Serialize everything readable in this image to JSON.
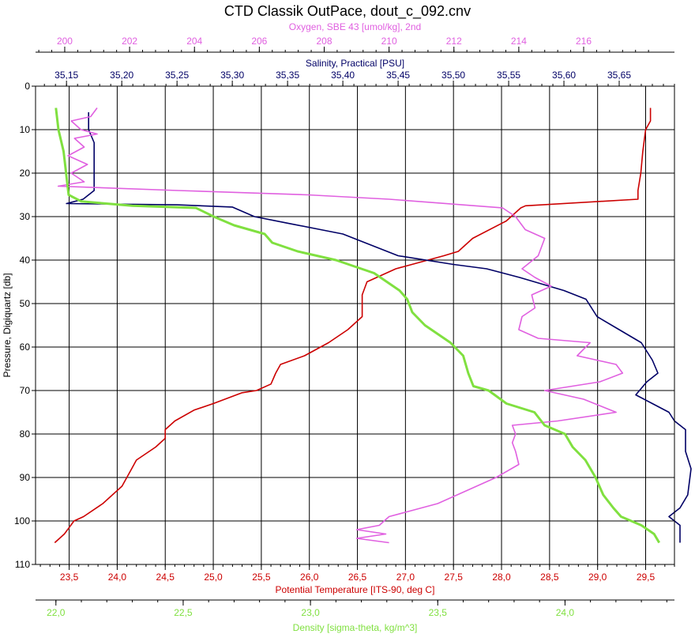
{
  "chart_data": {
    "type": "line",
    "title": "CTD Classik OutPace, dout_c_092.cnv",
    "grid": true,
    "y_axis": {
      "label": "Pressure, Digiquartz [db]",
      "range": [
        0,
        110
      ],
      "inverted": true,
      "ticks": [
        0,
        10,
        20,
        30,
        40,
        50,
        60,
        70,
        80,
        90,
        100,
        110
      ],
      "tick_labels": [
        "0",
        "10",
        "20",
        "30",
        "40",
        "50",
        "60",
        "70",
        "80",
        "90",
        "100",
        "110"
      ]
    },
    "x_axes": [
      {
        "id": "oxygen",
        "label": "Oxygen, SBE 43 [umol/kg], 2nd",
        "position": "top-outer",
        "color": "#e060e0",
        "range": [
          199.1,
          218.8
        ],
        "ticks": [
          200,
          202,
          204,
          206,
          208,
          210,
          212,
          214,
          216
        ],
        "tick_labels": [
          "200",
          "202",
          "204",
          "206",
          "208",
          "210",
          "212",
          "214",
          "216"
        ]
      },
      {
        "id": "salinity",
        "label": "Salinity, Practical [PSU]",
        "position": "top-inner",
        "color": "#000066",
        "range": [
          35.122,
          35.7
        ],
        "ticks": [
          35.15,
          35.2,
          35.25,
          35.3,
          35.35,
          35.4,
          35.45,
          35.5,
          35.55,
          35.6,
          35.65
        ],
        "tick_labels": [
          "35,15",
          "35,20",
          "35,25",
          "35,30",
          "35,35",
          "35,40",
          "35,45",
          "35,50",
          "35,55",
          "35,60",
          "35,65"
        ]
      },
      {
        "id": "temperature",
        "label": "Potential Temperature [ITS-90, deg C]",
        "position": "bottom-inner",
        "color": "#cc0000",
        "range": [
          23.15,
          29.8
        ],
        "ticks": [
          23.5,
          24.0,
          24.5,
          25.0,
          25.5,
          26.0,
          26.5,
          27.0,
          27.5,
          28.0,
          28.5,
          29.0,
          29.5
        ],
        "tick_labels": [
          "23,5",
          "24,0",
          "24,5",
          "25,0",
          "25,5",
          "26,0",
          "26,5",
          "27,0",
          "27,5",
          "28,0",
          "28,5",
          "29,0",
          "29,5"
        ]
      },
      {
        "id": "density",
        "label": "Density [sigma-theta, kg/m^3]",
        "position": "bottom-outer",
        "color": "#80e040",
        "range": [
          21.92,
          24.43
        ],
        "ticks": [
          22.0,
          22.5,
          23.0,
          23.5,
          24.0
        ],
        "tick_labels": [
          "22,0",
          "22,5",
          "23,0",
          "23,5",
          "24,0"
        ]
      }
    ],
    "series": [
      {
        "axis": "temperature",
        "color": "#cc0000",
        "points": [
          [
            29.55,
            5
          ],
          [
            29.55,
            8
          ],
          [
            29.5,
            10
          ],
          [
            29.47,
            15
          ],
          [
            29.45,
            20
          ],
          [
            29.42,
            24
          ],
          [
            29.42,
            26
          ],
          [
            28.25,
            27.5
          ],
          [
            28.2,
            28
          ],
          [
            28.05,
            31
          ],
          [
            27.7,
            35
          ],
          [
            27.55,
            38
          ],
          [
            27.4,
            39
          ],
          [
            26.9,
            42
          ],
          [
            26.6,
            45
          ],
          [
            26.55,
            48
          ],
          [
            26.55,
            53
          ],
          [
            26.4,
            56
          ],
          [
            26.2,
            59
          ],
          [
            25.95,
            62
          ],
          [
            25.7,
            64
          ],
          [
            25.65,
            66
          ],
          [
            25.6,
            68.5
          ],
          [
            25.45,
            70
          ],
          [
            25.3,
            70.5
          ],
          [
            25.0,
            73
          ],
          [
            24.8,
            74.5
          ],
          [
            24.6,
            77
          ],
          [
            24.5,
            79
          ],
          [
            24.5,
            81
          ],
          [
            24.4,
            83
          ],
          [
            24.2,
            86
          ],
          [
            24.15,
            88
          ],
          [
            24.05,
            92
          ],
          [
            23.85,
            96
          ],
          [
            23.65,
            99
          ],
          [
            23.55,
            100
          ],
          [
            23.45,
            103
          ],
          [
            23.35,
            105
          ]
        ]
      },
      {
        "axis": "salinity",
        "color": "#000066",
        "points": [
          [
            35.17,
            6
          ],
          [
            35.17,
            10
          ],
          [
            35.175,
            13
          ],
          [
            35.175,
            20
          ],
          [
            35.175,
            24
          ],
          [
            35.165,
            26
          ],
          [
            35.15,
            27
          ],
          [
            35.25,
            27.3
          ],
          [
            35.3,
            27.8
          ],
          [
            35.32,
            30
          ],
          [
            35.35,
            31.5
          ],
          [
            35.38,
            33
          ],
          [
            35.4,
            34
          ],
          [
            35.42,
            36
          ],
          [
            35.44,
            38
          ],
          [
            35.45,
            39
          ],
          [
            35.5,
            41
          ],
          [
            35.53,
            42
          ],
          [
            35.56,
            44
          ],
          [
            35.6,
            47
          ],
          [
            35.62,
            49
          ],
          [
            35.63,
            53
          ],
          [
            35.65,
            56
          ],
          [
            35.67,
            59
          ],
          [
            35.68,
            63
          ],
          [
            35.685,
            66
          ],
          [
            35.675,
            68
          ],
          [
            35.665,
            71
          ],
          [
            35.68,
            73
          ],
          [
            35.695,
            75
          ],
          [
            35.7,
            77
          ],
          [
            35.71,
            79
          ],
          [
            35.71,
            84
          ],
          [
            35.715,
            88
          ],
          [
            35.712,
            94
          ],
          [
            35.705,
            97
          ],
          [
            35.695,
            99
          ],
          [
            35.705,
            101
          ],
          [
            35.705,
            105
          ]
        ]
      },
      {
        "axis": "oxygen",
        "color": "#e060e0",
        "points": [
          [
            201.0,
            5
          ],
          [
            200.8,
            7
          ],
          [
            200.2,
            8
          ],
          [
            200.5,
            10
          ],
          [
            201.0,
            11
          ],
          [
            200.3,
            12
          ],
          [
            200.6,
            14
          ],
          [
            200.1,
            16
          ],
          [
            200.7,
            18
          ],
          [
            200.2,
            20
          ],
          [
            200.6,
            22
          ],
          [
            199.8,
            23
          ],
          [
            203.5,
            24
          ],
          [
            207.5,
            25
          ],
          [
            210.0,
            26
          ],
          [
            213.5,
            28
          ],
          [
            213.9,
            30
          ],
          [
            214.2,
            33
          ],
          [
            214.8,
            35
          ],
          [
            214.6,
            39
          ],
          [
            214.1,
            42
          ],
          [
            214.5,
            44
          ],
          [
            215.0,
            46
          ],
          [
            214.4,
            48
          ],
          [
            214.5,
            51
          ],
          [
            214.1,
            53
          ],
          [
            214.0,
            56
          ],
          [
            214.6,
            58
          ],
          [
            216.2,
            59
          ],
          [
            215.8,
            62
          ],
          [
            217.0,
            64
          ],
          [
            217.2,
            66
          ],
          [
            216.5,
            68
          ],
          [
            214.8,
            70
          ],
          [
            216.0,
            72
          ],
          [
            217.0,
            75
          ],
          [
            215.2,
            77
          ],
          [
            213.8,
            78
          ],
          [
            213.9,
            80
          ],
          [
            213.8,
            82
          ],
          [
            213.9,
            84
          ],
          [
            214.0,
            87
          ],
          [
            213.3,
            90
          ],
          [
            212.4,
            93
          ],
          [
            211.5,
            96
          ],
          [
            210.5,
            98
          ],
          [
            210.0,
            99
          ],
          [
            209.7,
            101
          ],
          [
            209.0,
            102
          ],
          [
            209.9,
            103
          ],
          [
            209.0,
            104
          ],
          [
            210.0,
            105
          ]
        ]
      },
      {
        "axis": "density",
        "color": "#80e040",
        "points": [
          [
            22.0,
            5
          ],
          [
            22.01,
            10
          ],
          [
            22.03,
            15
          ],
          [
            22.04,
            20
          ],
          [
            22.05,
            25
          ],
          [
            22.1,
            26.5
          ],
          [
            22.3,
            27.5
          ],
          [
            22.55,
            28
          ],
          [
            22.62,
            30
          ],
          [
            22.7,
            32
          ],
          [
            22.82,
            34
          ],
          [
            22.85,
            36
          ],
          [
            22.95,
            38
          ],
          [
            23.1,
            40
          ],
          [
            23.25,
            43
          ],
          [
            23.3,
            45
          ],
          [
            23.35,
            47
          ],
          [
            23.38,
            49
          ],
          [
            23.4,
            52
          ],
          [
            23.45,
            55
          ],
          [
            23.55,
            59
          ],
          [
            23.6,
            62
          ],
          [
            23.62,
            66
          ],
          [
            23.64,
            69
          ],
          [
            23.7,
            70
          ],
          [
            23.77,
            73
          ],
          [
            23.88,
            75
          ],
          [
            23.92,
            78
          ],
          [
            24.0,
            80
          ],
          [
            24.03,
            83
          ],
          [
            24.08,
            86
          ],
          [
            24.12,
            90
          ],
          [
            24.15,
            94
          ],
          [
            24.19,
            97
          ],
          [
            24.22,
            99
          ],
          [
            24.3,
            101
          ],
          [
            24.35,
            103
          ],
          [
            24.37,
            105
          ]
        ]
      }
    ]
  }
}
